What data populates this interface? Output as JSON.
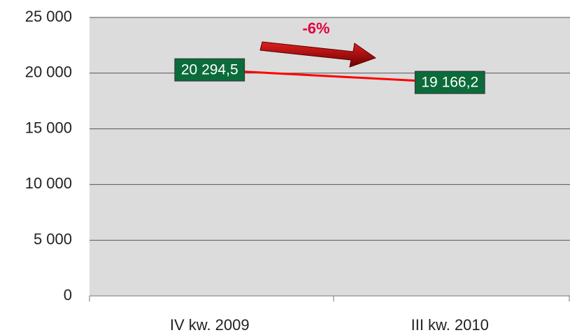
{
  "chart_data": {
    "type": "line",
    "categories": [
      "IV kw. 2009",
      "III kw. 2010"
    ],
    "values": [
      20294.5,
      19166.2
    ],
    "value_labels": [
      "20 294,5",
      "19 166,2"
    ],
    "color": "#ff0000",
    "ylim": [
      0,
      25000
    ],
    "yticks": [
      {
        "value": 0,
        "label": "0"
      },
      {
        "value": 5000,
        "label": "5 000"
      },
      {
        "value": 10000,
        "label": "10 000"
      },
      {
        "value": 15000,
        "label": "15 000"
      },
      {
        "value": 20000,
        "label": "20 000"
      },
      {
        "value": 25000,
        "label": "25 000"
      }
    ],
    "grid": true,
    "annotation": "-6%"
  }
}
